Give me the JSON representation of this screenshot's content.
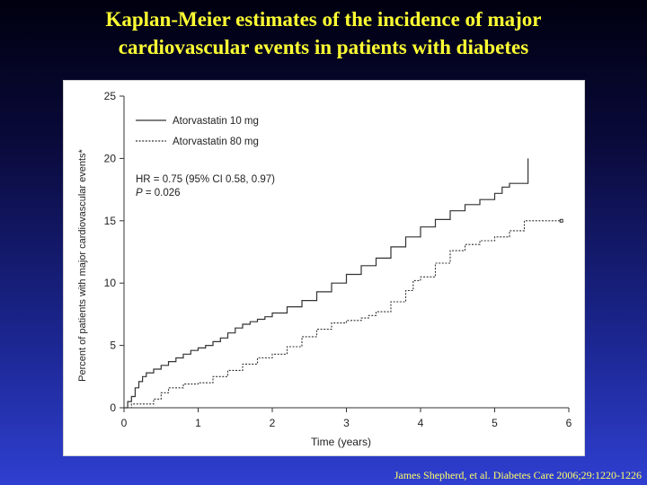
{
  "slide": {
    "title_line1": "Kaplan-Meier estimates of the incidence of major",
    "title_line2": "cardiovascular events in patients with diabetes",
    "citation": "James Shepherd, et al. Diabetes Care 2006;29:1220-1226"
  },
  "colors": {
    "title": "#ffff33",
    "citation": "#ffff66",
    "series_line": "#333333"
  },
  "chart_data": {
    "type": "line",
    "xlabel": "Time (years)",
    "ylabel": "Percent of patients with major cardiovascular events*",
    "xlim": [
      0,
      6
    ],
    "ylim": [
      0,
      25
    ],
    "xticks": [
      0,
      1,
      2,
      3,
      4,
      5,
      6
    ],
    "yticks": [
      0,
      5,
      10,
      15,
      20,
      25
    ],
    "legend_position": "top-left",
    "grid": false,
    "annotation_line1": "HR = 0.75 (95% CI 0.58, 0.97)",
    "annotation_p_label": "P",
    "annotation_p_value": " = 0.026",
    "series": [
      {
        "name": "Atorvastatin 10 mg",
        "style": "solid",
        "x": [
          0,
          0.05,
          0.1,
          0.15,
          0.2,
          0.25,
          0.3,
          0.4,
          0.5,
          0.6,
          0.7,
          0.8,
          0.9,
          1.0,
          1.1,
          1.2,
          1.3,
          1.4,
          1.5,
          1.6,
          1.7,
          1.8,
          1.9,
          2.0,
          2.2,
          2.4,
          2.6,
          2.8,
          3.0,
          3.2,
          3.4,
          3.6,
          3.8,
          4.0,
          4.2,
          4.4,
          4.6,
          4.8,
          5.0,
          5.1,
          5.2,
          5.3,
          5.4,
          5.45
        ],
        "y": [
          0,
          0.5,
          0.9,
          1.6,
          2.1,
          2.5,
          2.8,
          3.1,
          3.4,
          3.7,
          4.0,
          4.3,
          4.6,
          4.8,
          5.0,
          5.3,
          5.6,
          6.0,
          6.4,
          6.7,
          6.9,
          7.1,
          7.3,
          7.6,
          8.1,
          8.6,
          9.3,
          10.0,
          10.7,
          11.4,
          12.0,
          12.9,
          13.7,
          14.5,
          15.1,
          15.8,
          16.3,
          16.7,
          17.2,
          17.7,
          18.0,
          18.0,
          18.0,
          20.0
        ]
      },
      {
        "name": "Atorvastatin 80 mg",
        "style": "dotted",
        "x": [
          0,
          0.1,
          0.2,
          0.3,
          0.4,
          0.5,
          0.6,
          0.8,
          1.0,
          1.2,
          1.4,
          1.6,
          1.8,
          2.0,
          2.2,
          2.4,
          2.6,
          2.8,
          3.0,
          3.2,
          3.3,
          3.4,
          3.6,
          3.8,
          3.9,
          4.0,
          4.2,
          4.4,
          4.6,
          4.8,
          5.0,
          5.2,
          5.4,
          5.6,
          5.8,
          5.9
        ],
        "y": [
          0,
          0.3,
          0.3,
          0.3,
          0.7,
          1.2,
          1.6,
          1.9,
          2.0,
          2.5,
          3.0,
          3.5,
          4.0,
          4.3,
          4.9,
          5.7,
          6.3,
          6.8,
          7.0,
          7.2,
          7.4,
          7.7,
          8.5,
          9.4,
          10.2,
          10.5,
          11.6,
          12.6,
          13.1,
          13.4,
          13.7,
          14.2,
          15.0,
          15.0,
          15.0,
          15.0
        ]
      }
    ]
  }
}
